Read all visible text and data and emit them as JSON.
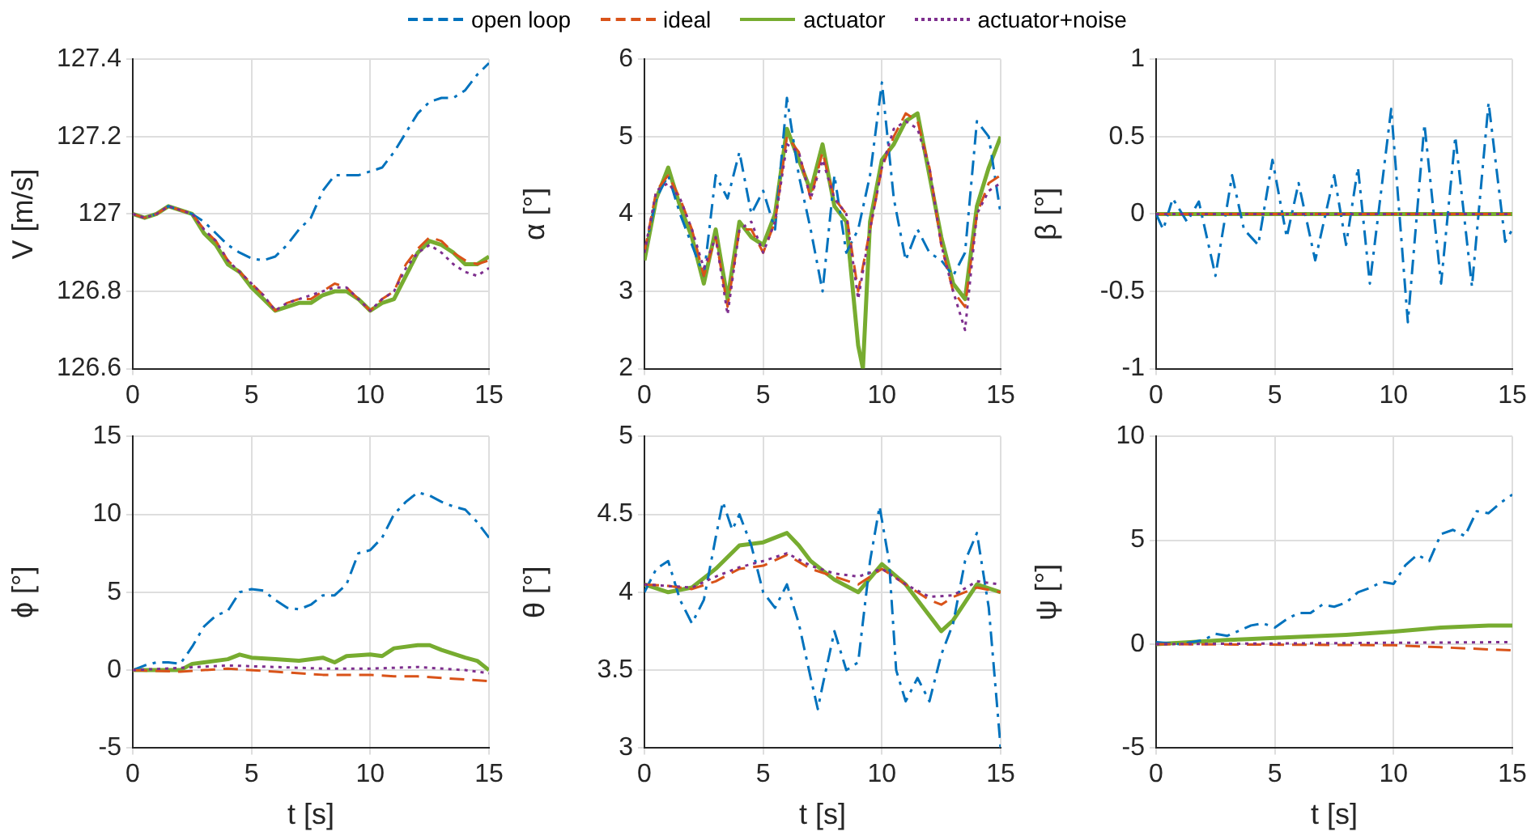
{
  "chart_data": [
    {
      "type": "line",
      "ylabel": "V [m/s]",
      "xlim": [
        0,
        15
      ],
      "xticks": [
        0,
        5,
        10,
        15
      ],
      "ylim": [
        126.6,
        127.4
      ],
      "yticks": [
        126.6,
        126.8,
        127,
        127.2,
        127.4
      ],
      "grid": true,
      "legend": "top",
      "marker": "none",
      "series": [
        {
          "name": "open loop",
          "color": "#0072bd",
          "line_style": "dashdot",
          "x": [
            0,
            0.5,
            1,
            1.5,
            2,
            2.5,
            3,
            3.5,
            4,
            4.5,
            5,
            5.5,
            6,
            6.5,
            7,
            7.5,
            8,
            8.5,
            9,
            9.5,
            10,
            10.5,
            11,
            11.5,
            12,
            12.5,
            13,
            13.5,
            14,
            14.5,
            15
          ],
          "values": [
            127.0,
            126.99,
            127.0,
            127.02,
            127.01,
            127.0,
            126.98,
            126.95,
            126.92,
            126.9,
            126.885,
            126.88,
            126.89,
            126.92,
            126.96,
            126.99,
            127.06,
            127.1,
            127.1,
            127.1,
            127.11,
            127.12,
            127.16,
            127.21,
            127.26,
            127.29,
            127.3,
            127.3,
            127.32,
            127.36,
            127.39
          ]
        },
        {
          "name": "ideal",
          "color": "#d95319",
          "line_style": "dashed",
          "x": [
            0,
            0.5,
            1,
            1.5,
            2,
            2.5,
            3,
            3.5,
            4,
            4.5,
            5,
            5.5,
            6,
            6.5,
            7,
            7.5,
            8,
            8.5,
            9,
            9.5,
            10,
            10.5,
            11,
            11.5,
            12,
            12.5,
            13,
            13.5,
            14,
            14.5,
            15
          ],
          "values": [
            127.0,
            126.99,
            127.0,
            127.02,
            127.01,
            127.0,
            126.96,
            126.93,
            126.88,
            126.85,
            126.82,
            126.79,
            126.75,
            126.77,
            126.78,
            126.78,
            126.8,
            126.82,
            126.81,
            126.78,
            126.75,
            126.78,
            126.8,
            126.87,
            126.91,
            126.94,
            126.93,
            126.9,
            126.88,
            126.87,
            126.88
          ]
        },
        {
          "name": "actuator",
          "color": "#77ac30",
          "line_style": "solid",
          "x": [
            0,
            0.5,
            1,
            1.5,
            2,
            2.5,
            3,
            3.5,
            4,
            4.5,
            5,
            5.5,
            6,
            6.5,
            7,
            7.5,
            8,
            8.5,
            9,
            9.5,
            10,
            10.5,
            11,
            11.5,
            12,
            12.5,
            13,
            13.5,
            14,
            14.5,
            15
          ],
          "values": [
            127.0,
            126.99,
            127.0,
            127.02,
            127.01,
            127.0,
            126.95,
            126.92,
            126.87,
            126.85,
            126.81,
            126.78,
            126.75,
            126.76,
            126.77,
            126.77,
            126.79,
            126.8,
            126.8,
            126.78,
            126.75,
            126.77,
            126.78,
            126.84,
            126.9,
            126.93,
            126.92,
            126.9,
            126.87,
            126.87,
            126.89
          ]
        },
        {
          "name": "actuator+noise",
          "color": "#7e2f8e",
          "line_style": "dotted",
          "x": [
            0,
            0.5,
            1,
            1.5,
            2,
            2.5,
            3,
            3.5,
            4,
            4.5,
            5,
            5.5,
            6,
            6.5,
            7,
            7.5,
            8,
            8.5,
            9,
            9.5,
            10,
            10.5,
            11,
            11.5,
            12,
            12.5,
            13,
            13.5,
            14,
            14.5,
            15
          ],
          "values": [
            127.0,
            126.99,
            127.0,
            127.02,
            127.01,
            127.0,
            126.96,
            126.93,
            126.88,
            126.85,
            126.82,
            126.79,
            126.75,
            126.77,
            126.78,
            126.79,
            126.8,
            126.81,
            126.81,
            126.78,
            126.75,
            126.78,
            126.8,
            126.86,
            126.9,
            126.92,
            126.9,
            126.87,
            126.85,
            126.84,
            126.86
          ]
        }
      ]
    },
    {
      "type": "line",
      "ylabel": "α [°]",
      "xlim": [
        0,
        15
      ],
      "xticks": [
        0,
        5,
        10,
        15
      ],
      "ylim": [
        2,
        6
      ],
      "yticks": [
        2,
        3,
        4,
        5,
        6
      ],
      "grid": true,
      "marker": "none",
      "series": [
        {
          "color": "#0072bd",
          "line_style": "dashdot",
          "x": [
            0,
            0.5,
            1,
            1.5,
            2,
            2.5,
            3,
            3.5,
            4,
            4.5,
            5,
            5.5,
            6,
            6.5,
            7,
            7.5,
            8,
            8.5,
            9,
            9.5,
            10,
            10.5,
            11,
            11.5,
            12,
            12.5,
            13,
            13.5,
            14,
            14.5,
            15
          ],
          "values": [
            3.5,
            4.2,
            4.5,
            4.0,
            3.6,
            3.2,
            4.5,
            4.2,
            4.8,
            4.0,
            4.3,
            3.8,
            5.5,
            4.5,
            3.8,
            3.0,
            4.5,
            3.5,
            3.8,
            4.5,
            5.7,
            4.2,
            3.4,
            3.8,
            3.5,
            3.4,
            3.2,
            3.5,
            5.2,
            5.0,
            4.0
          ]
        },
        {
          "color": "#d95319",
          "line_style": "dashed",
          "x": [
            0,
            0.5,
            1,
            1.5,
            2,
            2.5,
            3,
            3.5,
            4,
            4.5,
            5,
            5.5,
            6,
            6.5,
            7,
            7.5,
            8,
            8.5,
            9,
            9.5,
            10,
            10.5,
            11,
            11.5,
            12,
            12.5,
            13,
            13.5,
            14,
            14.5,
            15
          ],
          "values": [
            3.5,
            4.3,
            4.5,
            4.2,
            3.8,
            3.2,
            3.7,
            2.8,
            3.8,
            3.8,
            3.5,
            3.9,
            5.0,
            4.8,
            4.2,
            4.8,
            4.2,
            4.0,
            3.0,
            3.8,
            4.6,
            5.0,
            5.3,
            5.2,
            4.6,
            3.6,
            3.0,
            2.8,
            4.0,
            4.4,
            4.5
          ]
        },
        {
          "color": "#77ac30",
          "line_style": "solid",
          "x": [
            0,
            0.5,
            1,
            1.5,
            2,
            2.5,
            3,
            3.5,
            4,
            4.5,
            5,
            5.5,
            6,
            6.5,
            7,
            7.5,
            8,
            8.5,
            9,
            9.2,
            9.5,
            10,
            10.5,
            11,
            11.5,
            12,
            12.5,
            13,
            13.5,
            14,
            14.5,
            15
          ],
          "values": [
            3.4,
            4.2,
            4.6,
            4.1,
            3.7,
            3.1,
            3.8,
            2.9,
            3.9,
            3.7,
            3.6,
            4.0,
            5.1,
            4.7,
            4.3,
            4.9,
            4.1,
            3.9,
            2.3,
            2.0,
            3.9,
            4.7,
            4.9,
            5.2,
            5.3,
            4.5,
            3.7,
            3.1,
            2.9,
            4.1,
            4.6,
            5.0
          ]
        },
        {
          "color": "#7e2f8e",
          "line_style": "dotted",
          "x": [
            0,
            0.5,
            1,
            1.5,
            2,
            2.5,
            3,
            3.5,
            4,
            4.5,
            5,
            5.5,
            6,
            6.5,
            7,
            7.5,
            8,
            8.5,
            9,
            9.5,
            10,
            10.5,
            11,
            11.5,
            12,
            12.5,
            13,
            13.5,
            14,
            14.5,
            15
          ],
          "values": [
            3.5,
            4.3,
            4.4,
            4.2,
            3.8,
            3.3,
            3.7,
            2.7,
            3.8,
            3.9,
            3.5,
            3.9,
            4.9,
            4.8,
            4.2,
            4.7,
            4.2,
            4.0,
            2.9,
            3.8,
            4.6,
            5.1,
            5.2,
            5.1,
            4.6,
            3.6,
            3.0,
            2.5,
            4.0,
            4.3,
            4.4
          ]
        }
      ]
    },
    {
      "type": "line",
      "ylabel": "β [°]",
      "xlim": [
        0,
        15
      ],
      "xticks": [
        0,
        5,
        10,
        15
      ],
      "ylim": [
        -1,
        1
      ],
      "yticks": [
        -1,
        -0.5,
        0,
        0.5,
        1
      ],
      "grid": true,
      "marker": "none",
      "series": [
        {
          "color": "#0072bd",
          "line_style": "dashdot",
          "x": [
            0,
            0.3,
            0.7,
            1.3,
            1.8,
            2.5,
            3.2,
            3.7,
            4.3,
            4.9,
            5.5,
            6.0,
            6.7,
            7.5,
            8.0,
            8.5,
            9.0,
            9.9,
            10.6,
            11.3,
            12.0,
            12.6,
            13.3,
            14.0,
            14.7,
            15
          ],
          "values": [
            0,
            -0.1,
            0.1,
            -0.05,
            0.08,
            -0.4,
            0.25,
            -0.1,
            -0.2,
            0.35,
            -0.15,
            0.2,
            -0.3,
            0.25,
            -0.2,
            0.3,
            -0.45,
            0.68,
            -0.7,
            0.58,
            -0.45,
            0.5,
            -0.47,
            0.72,
            -0.18,
            -0.1
          ]
        },
        {
          "color": "#d95319",
          "line_style": "dashed",
          "x": [
            0,
            15
          ],
          "values": [
            0,
            0
          ]
        },
        {
          "color": "#77ac30",
          "line_style": "solid",
          "x": [
            0,
            15
          ],
          "values": [
            0,
            0
          ]
        },
        {
          "color": "#7e2f8e",
          "line_style": "dotted",
          "x": [
            0,
            15
          ],
          "values": [
            0,
            0
          ]
        }
      ]
    },
    {
      "type": "line",
      "ylabel": "ϕ [°]",
      "xlabel": "t [s]",
      "xlim": [
        0,
        15
      ],
      "xticks": [
        0,
        5,
        10,
        15
      ],
      "ylim": [
        -5,
        15
      ],
      "yticks": [
        -5,
        0,
        5,
        10,
        15
      ],
      "grid": true,
      "marker": "none",
      "series": [
        {
          "color": "#0072bd",
          "line_style": "dashdot",
          "x": [
            0,
            0.5,
            1,
            1.5,
            2,
            2.5,
            3,
            3.5,
            4,
            4.5,
            5,
            5.5,
            6,
            6.5,
            7,
            7.5,
            8,
            8.5,
            9,
            9.5,
            10,
            10.5,
            11,
            11.5,
            12,
            12.5,
            13,
            13.5,
            14,
            14.5,
            15
          ],
          "values": [
            0,
            0.3,
            0.5,
            0.5,
            0.4,
            1.5,
            2.8,
            3.5,
            3.8,
            5.0,
            5.2,
            5.1,
            4.5,
            4.0,
            3.9,
            4.2,
            4.8,
            4.8,
            5.5,
            7.5,
            7.7,
            8.5,
            10.0,
            10.8,
            11.4,
            11.2,
            10.8,
            10.5,
            10.3,
            9.5,
            8.5
          ]
        },
        {
          "color": "#d95319",
          "line_style": "dashed",
          "x": [
            0,
            2,
            4,
            6,
            8,
            10,
            11,
            12,
            13,
            14,
            15
          ],
          "values": [
            0,
            -0.1,
            0.1,
            -0.1,
            -0.3,
            -0.3,
            -0.4,
            -0.4,
            -0.5,
            -0.6,
            -0.7
          ]
        },
        {
          "color": "#77ac30",
          "line_style": "solid",
          "x": [
            0,
            2,
            2.5,
            3,
            4,
            4.5,
            5,
            6,
            7,
            8,
            8.5,
            9,
            10,
            10.5,
            11,
            12,
            12.5,
            13,
            14,
            14.5,
            15
          ],
          "values": [
            0,
            0,
            0.4,
            0.5,
            0.7,
            1.0,
            0.8,
            0.7,
            0.6,
            0.8,
            0.5,
            0.9,
            1.0,
            0.9,
            1.4,
            1.6,
            1.6,
            1.3,
            0.8,
            0.6,
            0
          ]
        },
        {
          "color": "#7e2f8e",
          "line_style": "dotted",
          "x": [
            0,
            4,
            6,
            8,
            10,
            12,
            14,
            15
          ],
          "values": [
            0,
            0.3,
            0.2,
            0.1,
            0.1,
            0.2,
            0,
            -0.2
          ]
        }
      ]
    },
    {
      "type": "line",
      "ylabel": "θ [°]",
      "xlabel": "t [s]",
      "xlim": [
        0,
        15
      ],
      "xticks": [
        0,
        5,
        10,
        15
      ],
      "ylim": [
        3,
        5
      ],
      "yticks": [
        3,
        3.5,
        4,
        4.5,
        5
      ],
      "grid": true,
      "marker": "none",
      "series": [
        {
          "color": "#0072bd",
          "line_style": "dashdot",
          "x": [
            0,
            0.5,
            1,
            1.5,
            2,
            2.5,
            3,
            3.3,
            3.7,
            4,
            4.5,
            5,
            5.5,
            6,
            6.5,
            7,
            7.3,
            7.5,
            8,
            8.5,
            9,
            9.5,
            9.9,
            10.3,
            10.6,
            11,
            11.5,
            12,
            12.5,
            13,
            13.5,
            14,
            14.5,
            15
          ],
          "values": [
            4.0,
            4.15,
            4.2,
            3.95,
            3.8,
            3.95,
            4.35,
            4.58,
            4.4,
            4.5,
            4.3,
            4.0,
            3.9,
            4.05,
            3.8,
            3.45,
            3.25,
            3.4,
            3.75,
            3.5,
            3.55,
            4.2,
            4.55,
            4.2,
            3.5,
            3.3,
            3.45,
            3.3,
            3.6,
            3.8,
            4.2,
            4.38,
            3.9,
            3.0
          ]
        },
        {
          "color": "#d95319",
          "line_style": "dashed",
          "x": [
            0,
            1,
            2,
            3,
            4,
            5,
            6,
            7,
            8,
            9,
            10,
            11,
            12,
            12.5,
            13,
            14,
            15
          ],
          "values": [
            4.05,
            4.04,
            4.02,
            4.07,
            4.15,
            4.17,
            4.24,
            4.15,
            4.1,
            4.05,
            4.15,
            4.05,
            3.95,
            3.92,
            3.97,
            4.03,
            4.0
          ]
        },
        {
          "color": "#77ac30",
          "line_style": "solid",
          "x": [
            0,
            1,
            2,
            3,
            4,
            5,
            6,
            6.5,
            7,
            8,
            9,
            10,
            11,
            12,
            12.5,
            13,
            14,
            15
          ],
          "values": [
            4.05,
            4.0,
            4.03,
            4.15,
            4.3,
            4.32,
            4.38,
            4.3,
            4.2,
            4.08,
            4.0,
            4.18,
            4.05,
            3.85,
            3.75,
            3.82,
            4.05,
            4.0
          ]
        },
        {
          "color": "#7e2f8e",
          "line_style": "dotted",
          "x": [
            0,
            2,
            3,
            4,
            5,
            6,
            7,
            8,
            9,
            10,
            11,
            12,
            13,
            14,
            15
          ],
          "values": [
            4.05,
            4.03,
            4.1,
            4.16,
            4.2,
            4.25,
            4.17,
            4.12,
            4.1,
            4.15,
            4.05,
            3.97,
            3.98,
            4.07,
            4.05
          ]
        }
      ]
    },
    {
      "type": "line",
      "ylabel": "ψ [°]",
      "xlabel": "t [s]",
      "xlim": [
        0,
        15
      ],
      "xticks": [
        0,
        5,
        10,
        15
      ],
      "ylim": [
        -5,
        10
      ],
      "yticks": [
        -5,
        0,
        5,
        10
      ],
      "grid": true,
      "marker": "none",
      "series": [
        {
          "color": "#0072bd",
          "line_style": "dashdot",
          "x": [
            0,
            1,
            2,
            2.5,
            3,
            4,
            4.5,
            5,
            5.5,
            6,
            6.5,
            7,
            7.5,
            8,
            8.5,
            9,
            9.5,
            10,
            10.5,
            11,
            11.5,
            12,
            12.5,
            13,
            13.5,
            14,
            14.5,
            15
          ],
          "values": [
            0.1,
            0,
            0.2,
            0.5,
            0.4,
            0.9,
            1.0,
            0.8,
            1.2,
            1.5,
            1.5,
            1.9,
            1.8,
            2.0,
            2.5,
            2.7,
            3.0,
            2.9,
            3.8,
            4.3,
            4.0,
            5.3,
            5.5,
            5.2,
            6.4,
            6.3,
            6.8,
            7.2
          ]
        },
        {
          "color": "#d95319",
          "line_style": "dashed",
          "x": [
            0,
            10,
            15
          ],
          "values": [
            0,
            -0.05,
            -0.3
          ]
        },
        {
          "color": "#77ac30",
          "line_style": "solid",
          "x": [
            0,
            3,
            5,
            8,
            10,
            12,
            14,
            15
          ],
          "values": [
            0,
            0.2,
            0.3,
            0.45,
            0.6,
            0.8,
            0.9,
            0.9
          ]
        },
        {
          "color": "#7e2f8e",
          "line_style": "dotted",
          "x": [
            0,
            15
          ],
          "values": [
            0,
            0.1
          ]
        }
      ]
    }
  ]
}
